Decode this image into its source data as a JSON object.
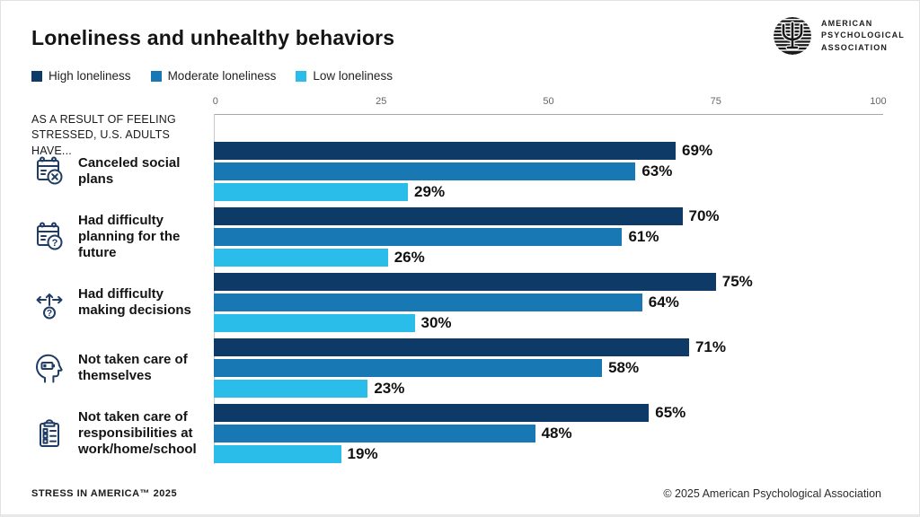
{
  "header": {
    "title": "Loneliness and unhealthy behaviors",
    "logo_org_lines": [
      "AMERICAN",
      "PSYCHOLOGICAL",
      "ASSOCIATION"
    ]
  },
  "aside_header": "AS A RESULT OF FEELING STRESSED, U.S. ADULTS HAVE...",
  "chart_data": {
    "type": "bar",
    "orientation": "horizontal",
    "title": "Loneliness and unhealthy behaviors",
    "categories": [
      {
        "label": "Canceled social plans",
        "icon": "calendar-x-icon"
      },
      {
        "label": "Had difficulty planning for the future",
        "icon": "calendar-question-icon"
      },
      {
        "label": "Had difficulty making decisions",
        "icon": "decision-arrows-icon"
      },
      {
        "label": "Not taken care of themselves",
        "icon": "head-battery-icon"
      },
      {
        "label": "Not taken care of responsibilities at work/home/school",
        "icon": "clipboard-checklist-icon"
      }
    ],
    "series": [
      {
        "name": "High loneliness",
        "color": "#0d3a66",
        "values": [
          69,
          70,
          75,
          71,
          65
        ]
      },
      {
        "name": "Moderate loneliness",
        "color": "#1878b4",
        "values": [
          63,
          61,
          64,
          58,
          48
        ]
      },
      {
        "name": "Low loneliness",
        "color": "#2bbde9",
        "values": [
          29,
          26,
          30,
          23,
          19
        ]
      }
    ],
    "xlim": [
      0,
      100
    ],
    "x_ticks": [
      0,
      25,
      50,
      75,
      100
    ],
    "value_suffix": "%",
    "legend_position": "top-left",
    "grid": false
  },
  "footer": {
    "left": "STRESS IN AMERICA™ 2025",
    "right": "© 2025 American Psychological Association"
  }
}
